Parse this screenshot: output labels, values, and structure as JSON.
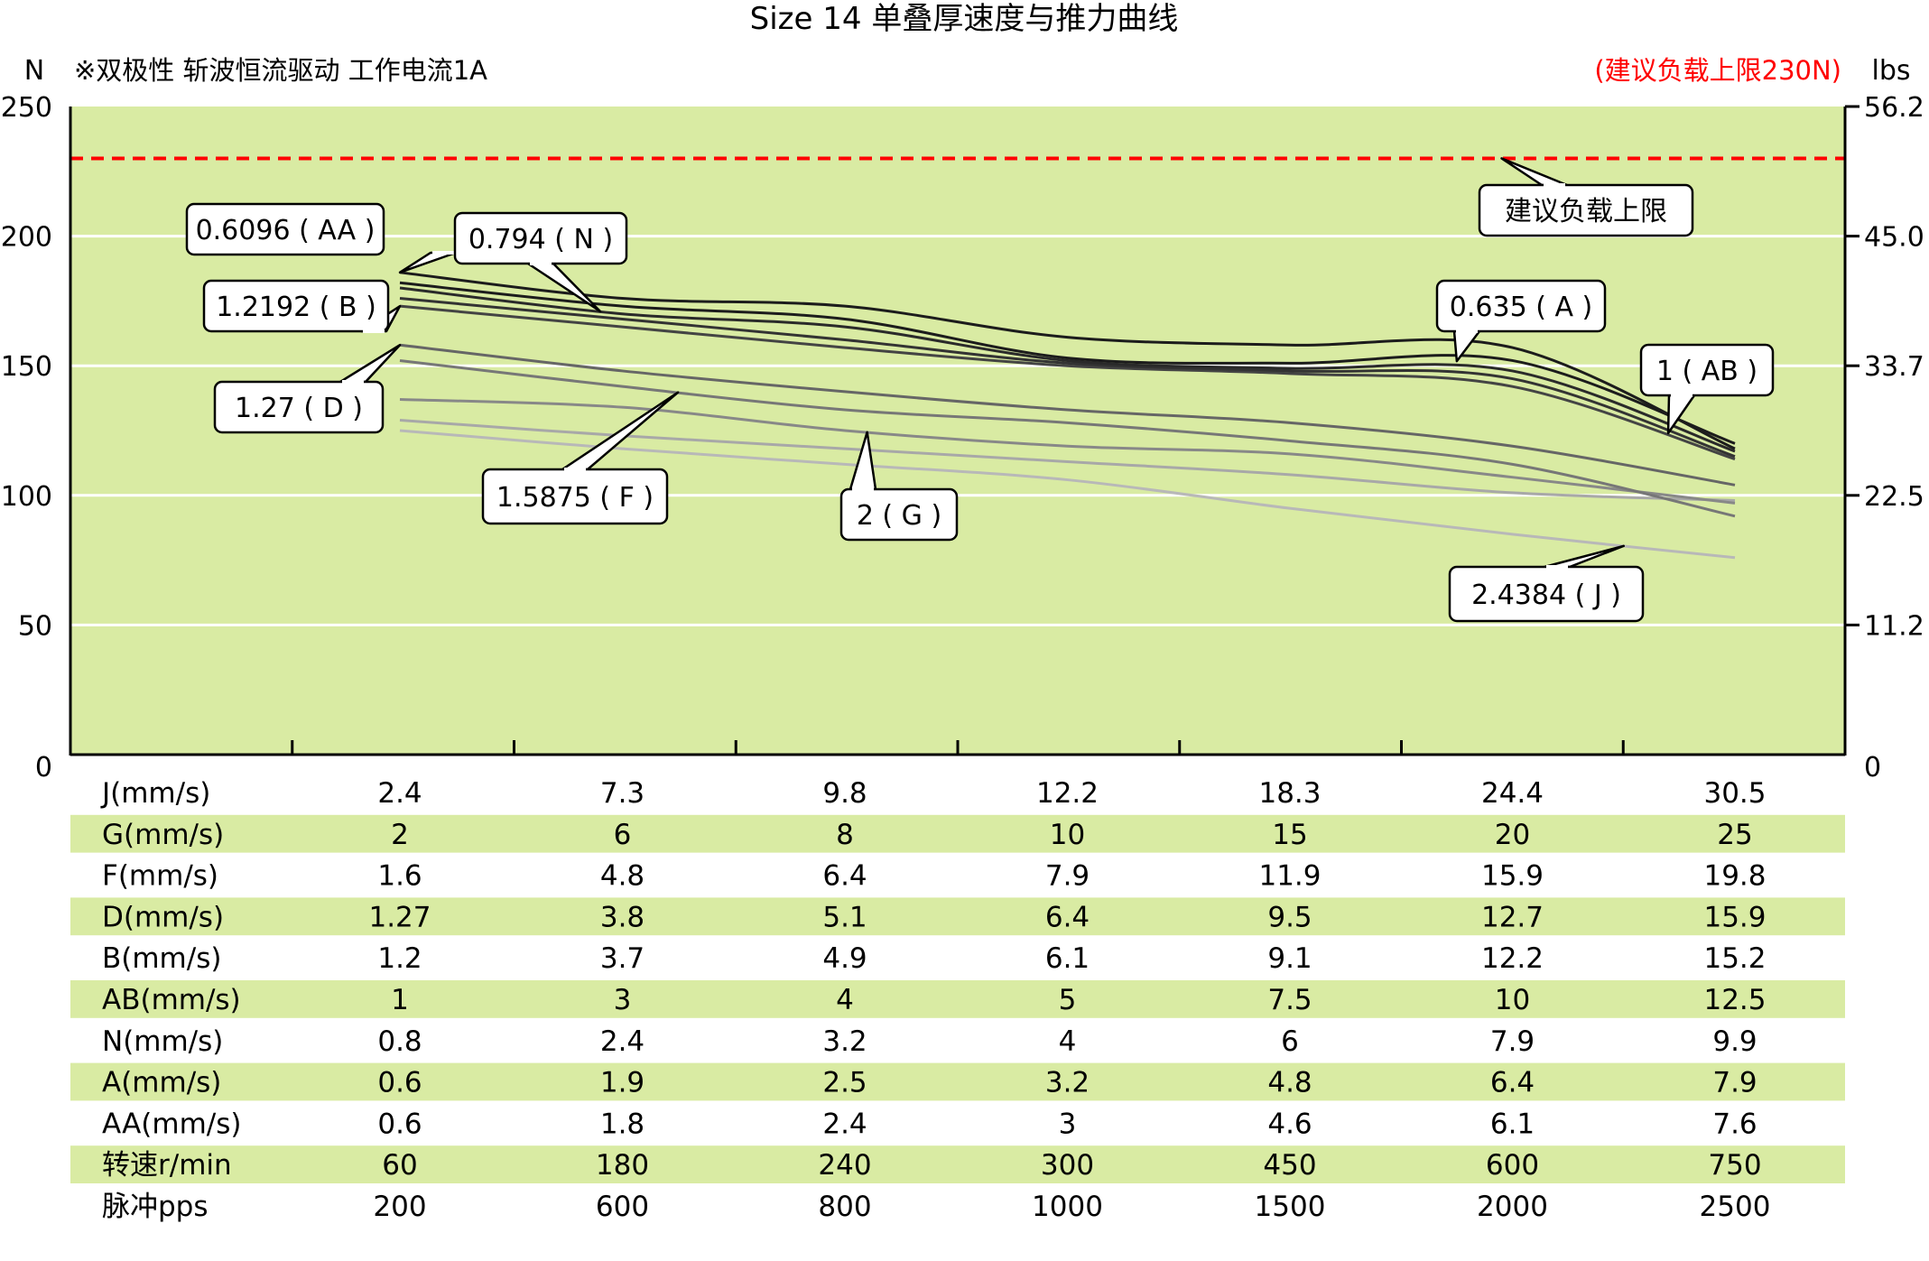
{
  "chart_data": {
    "type": "line",
    "title": "Size 14 单叠厚速度与推力曲线",
    "subtitle": "※双极性 斩波恒流驱动 工作电流1A",
    "limit_note": "(建议负载上限230N)",
    "ylabel_left": "N",
    "ylabel_right": "lbs",
    "ylim": [
      0,
      250
    ],
    "yticks_left": [
      "250",
      "200",
      "150",
      "100",
      "50",
      "0"
    ],
    "yticks_right": [
      "56.2",
      "45.0",
      "33.7",
      "22.5",
      "11.2",
      "0"
    ],
    "x_index": [
      1,
      2,
      3,
      4,
      5,
      6,
      7
    ],
    "grid": true,
    "limit_line": {
      "value": 230,
      "label": "建议负载上限",
      "color": "#ff0000"
    },
    "plot_bg": "#d9eba3",
    "series": [
      {
        "name": "0.6096 ( AA )",
        "color": "#1c1c1c",
        "values": [
          186,
          176,
          173,
          161,
          158,
          157,
          118
        ]
      },
      {
        "name": "0.635 ( A )",
        "color": "#1c1c1c",
        "values": [
          182,
          173,
          168,
          153,
          151,
          152,
          120
        ]
      },
      {
        "name": "0.794 ( N )",
        "color": "#2a2a2a",
        "values": [
          180,
          170,
          165,
          152,
          149,
          148,
          117
        ]
      },
      {
        "name": "1 ( AB )",
        "color": "#333333",
        "values": [
          176,
          168,
          160,
          151,
          148,
          145,
          115
        ]
      },
      {
        "name": "1.2192 ( B )",
        "color": "#444444",
        "values": [
          173,
          165,
          157,
          150,
          147,
          142,
          114
        ]
      },
      {
        "name": "1.27 ( D )",
        "color": "#666666",
        "values": [
          158,
          148,
          140,
          133,
          128,
          119,
          104
        ]
      },
      {
        "name": "1.5875 ( F )",
        "color": "#777777",
        "values": [
          152,
          142,
          133,
          128,
          121,
          112,
          92
        ]
      },
      {
        "name": "2 ( G )",
        "color": "#888888",
        "values": [
          137,
          134,
          125,
          119,
          116,
          107,
          97
        ]
      },
      {
        "name": "",
        "color": "#a8a8a8",
        "values": [
          129,
          123,
          118,
          113,
          108,
          101,
          98
        ]
      },
      {
        "name": "2.4384 ( J )",
        "color": "#b8b8b8",
        "values": [
          125,
          118,
          112,
          106,
          95,
          85,
          76
        ]
      }
    ],
    "callouts": [
      {
        "text": "0.6096 ( AA )",
        "series": 0,
        "x": 1.0
      },
      {
        "text": "0.794 ( N )",
        "series": 2,
        "x": 1.9
      },
      {
        "text": "1.2192 ( B )",
        "series": 4,
        "x": 1.0
      },
      {
        "text": "1.27 ( D )",
        "series": 5,
        "x": 1.0
      },
      {
        "text": "1.5875 ( F )",
        "series": 6,
        "x": 2.25
      },
      {
        "text": "2 ( G )",
        "series": 7,
        "x": 3.1
      },
      {
        "text": "0.635 ( A )",
        "series": 1,
        "x": 5.75
      },
      {
        "text": "1 ( AB )",
        "series": 3,
        "x": 6.7
      },
      {
        "text": "2.4384 ( J )",
        "series": 9,
        "x": 6.5
      },
      {
        "text": "建议负载上限",
        "series": -1,
        "x": 6.0
      }
    ]
  },
  "table": {
    "rows": [
      {
        "label": "J(mm/s)",
        "values": [
          "2.4",
          "7.3",
          "9.8",
          "12.2",
          "18.3",
          "24.4",
          "30.5"
        ]
      },
      {
        "label": "G(mm/s)",
        "values": [
          "2",
          "6",
          "8",
          "10",
          "15",
          "20",
          "25"
        ]
      },
      {
        "label": "F(mm/s)",
        "values": [
          "1.6",
          "4.8",
          "6.4",
          "7.9",
          "11.9",
          "15.9",
          "19.8"
        ]
      },
      {
        "label": "D(mm/s)",
        "values": [
          "1.27",
          "3.8",
          "5.1",
          "6.4",
          "9.5",
          "12.7",
          "15.9"
        ]
      },
      {
        "label": "B(mm/s)",
        "values": [
          "1.2",
          "3.7",
          "4.9",
          "6.1",
          "9.1",
          "12.2",
          "15.2"
        ]
      },
      {
        "label": "AB(mm/s)",
        "values": [
          "1",
          "3",
          "4",
          "5",
          "7.5",
          "10",
          "12.5"
        ]
      },
      {
        "label": "N(mm/s)",
        "values": [
          "0.8",
          "2.4",
          "3.2",
          "4",
          "6",
          "7.9",
          "9.9"
        ]
      },
      {
        "label": "A(mm/s)",
        "values": [
          "0.6",
          "1.9",
          "2.5",
          "3.2",
          "4.8",
          "6.4",
          "7.9"
        ]
      },
      {
        "label": "AA(mm/s)",
        "values": [
          "0.6",
          "1.8",
          "2.4",
          "3",
          "4.6",
          "6.1",
          "7.6"
        ]
      },
      {
        "label": "转速r/min",
        "values": [
          "60",
          "180",
          "240",
          "300",
          "450",
          "600",
          "750"
        ]
      },
      {
        "label": "脉冲pps",
        "values": [
          "200",
          "600",
          "800",
          "1000",
          "1500",
          "2000",
          "2500"
        ]
      }
    ],
    "stripe_color": "#d9eba3"
  }
}
